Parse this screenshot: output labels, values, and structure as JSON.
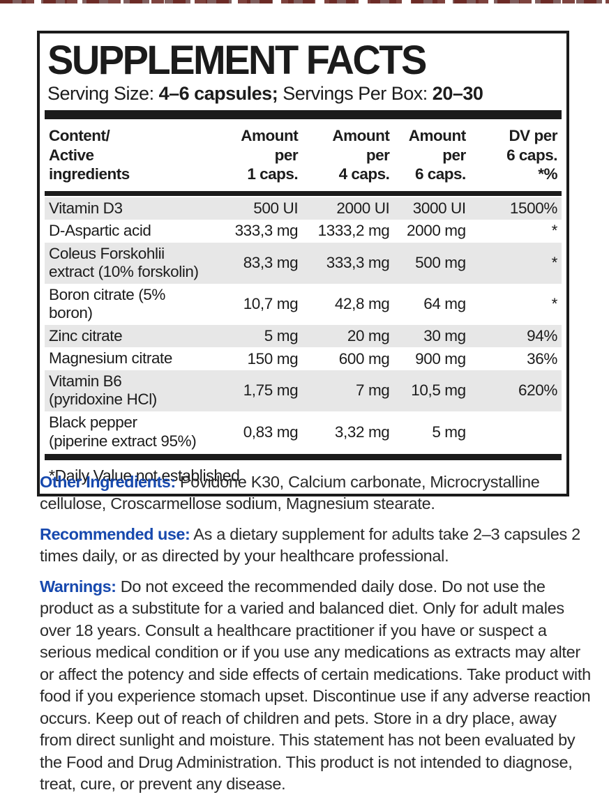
{
  "colors": {
    "ink": "#1b1b1b",
    "accent_blue": "#1749ae",
    "row_shade": "#e7e7e7",
    "edge_marks": "#68221c"
  },
  "panel": {
    "title": "SUPPLEMENT FACTS",
    "serving": {
      "label1": "Serving Size: ",
      "value1": "4–6 capsules;",
      "label2": " Servings Per Box: ",
      "value2": "20–30"
    },
    "footnote": "*Daily Value not established"
  },
  "table": {
    "header": {
      "name_lines": [
        "Content/",
        "Active",
        "ingredients"
      ],
      "amount_cols": [
        {
          "lines": [
            "Amount",
            "per",
            "1 caps."
          ]
        },
        {
          "lines": [
            "Amount",
            "per",
            "4 caps."
          ]
        },
        {
          "lines": [
            "Amount",
            "per",
            "6 caps."
          ]
        },
        {
          "lines": [
            "DV per",
            "6 caps.",
            "*%"
          ]
        }
      ]
    },
    "rows": [
      {
        "name_lines": [
          "Vitamin D3"
        ],
        "per1": "500 UI",
        "per4": "2000 UI",
        "per6": "3000 UI",
        "dv": "1500%",
        "shaded": true
      },
      {
        "name_lines": [
          "D-Aspartic acid"
        ],
        "per1": "333,3 mg",
        "per4": "1333,2 mg",
        "per6": "2000 mg",
        "dv": "*",
        "shaded": false
      },
      {
        "name_lines": [
          "Coleus Forskohlii",
          "extract (10% forskolin)"
        ],
        "per1": "83,3 mg",
        "per4": "333,3 mg",
        "per6": "500 mg",
        "dv": "*",
        "shaded": true
      },
      {
        "name_lines": [
          "Boron citrate (5% boron)"
        ],
        "per1": "10,7 mg",
        "per4": "42,8 mg",
        "per6": "64 mg",
        "dv": "*",
        "shaded": false
      },
      {
        "name_lines": [
          "Zinc citrate"
        ],
        "per1": "5 mg",
        "per4": "20 mg",
        "per6": "30 mg",
        "dv": "94%",
        "shaded": true
      },
      {
        "name_lines": [
          "Magnesium citrate"
        ],
        "per1": "150 mg",
        "per4": "600 mg",
        "per6": "900 mg",
        "dv": "36%",
        "shaded": false
      },
      {
        "name_lines": [
          "Vitamin B6",
          "(pyridoxine HCl)"
        ],
        "per1": "1,75 mg",
        "per4": "7 mg",
        "per6": "10,5 mg",
        "dv": "620%",
        "shaded": true
      },
      {
        "name_lines": [
          "Black pepper",
          "(piperine extract 95%)"
        ],
        "per1": "0,83 mg",
        "per4": "3,32 mg",
        "per6": "5 mg",
        "dv": "",
        "shaded": false
      }
    ]
  },
  "sections": [
    {
      "label": "Other Ingredients:",
      "text": " Povidone K30, Calcium carbonate, Microcrystalline cellulose, Croscarmellose sodium, Magnesium stearate."
    },
    {
      "label": "Recommended use:",
      "text": " As a dietary supplement for adults take 2–3 capsules 2 times daily, or as directed by your healthcare professional."
    },
    {
      "label": "Warnings:",
      "text": " Do not exceed the recommended daily dose. Do not use the product as a substitute for a varied and balanced diet. Only for adult males over 18 years. Consult a healthcare practitioner if you have or suspect a serious medical condition or if you use any medications as extracts may alter or affect the potency and side effects of certain medications. Take product with food if you experience stomach upset. Discontinue use if any adverse reaction occurs. Keep out of reach of children and pets. Store in a dry place, away from direct sunlight and moisture. This statement has not been evaluated by the Food and Drug Administration. This product is not intended to diagnose, treat, cure, or prevent any disease."
    }
  ]
}
